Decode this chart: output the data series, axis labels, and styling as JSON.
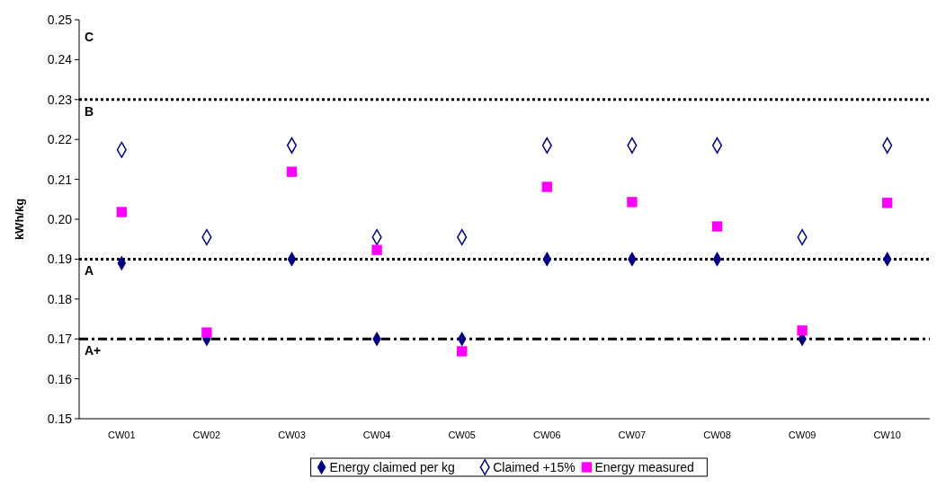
{
  "chart_data": {
    "type": "scatter",
    "ylabel": "kWh/kg",
    "categories": [
      "CW01",
      "CW02",
      "CW03",
      "CW04",
      "CW05",
      "CW06",
      "CW07",
      "CW08",
      "CW09",
      "CW10"
    ],
    "series": [
      {
        "name": "Energy claimed per kg",
        "color": "#000080",
        "marker": "diamond",
        "values": [
          0.189,
          0.17,
          0.19,
          0.17,
          0.17,
          0.19,
          0.19,
          0.19,
          0.17,
          0.19
        ]
      },
      {
        "name": "Claimed +15%",
        "color": "#000080",
        "marker": "diamond",
        "values": [
          0.2174,
          0.1955,
          0.2185,
          0.1955,
          0.1955,
          0.2185,
          0.2185,
          0.2185,
          0.1955,
          0.2185
        ]
      },
      {
        "name": "Energy measured",
        "color": "#ff00ff",
        "marker": "square",
        "values": [
          0.2018,
          0.1716,
          0.2119,
          0.1923,
          0.1669,
          0.2081,
          0.2043,
          0.1982,
          0.1721,
          0.2041
        ]
      }
    ],
    "ylim": [
      0.15,
      0.25
    ],
    "yticks": [
      {
        "value": 0.15,
        "label": "0.15"
      },
      {
        "value": 0.16,
        "label": "0.16"
      },
      {
        "value": 0.17,
        "label": "0.17"
      },
      {
        "value": 0.18,
        "label": "0.18"
      },
      {
        "value": 0.19,
        "label": "0.19"
      },
      {
        "value": 0.2,
        "label": "0.20"
      },
      {
        "value": 0.21,
        "label": "0.21"
      },
      {
        "value": 0.22,
        "label": "0.22"
      },
      {
        "value": 0.23,
        "label": "0.23"
      },
      {
        "value": 0.24,
        "label": "0.24"
      },
      {
        "value": 0.25,
        "label": "0.25"
      }
    ],
    "ref_lines": [
      {
        "axis": "y",
        "value": 0.23,
        "label": "B",
        "color": "#000000",
        "line_style": "dotted"
      },
      {
        "axis": "y",
        "value": 0.19,
        "label": "A",
        "color": "#000000",
        "line_style": "dotted"
      },
      {
        "axis": "y",
        "value": 0.17,
        "label": "A+",
        "color": "#000000",
        "line_style": "dashed"
      }
    ],
    "annotations": [
      "C"
    ],
    "legend": "bottom",
    "grid": false
  }
}
